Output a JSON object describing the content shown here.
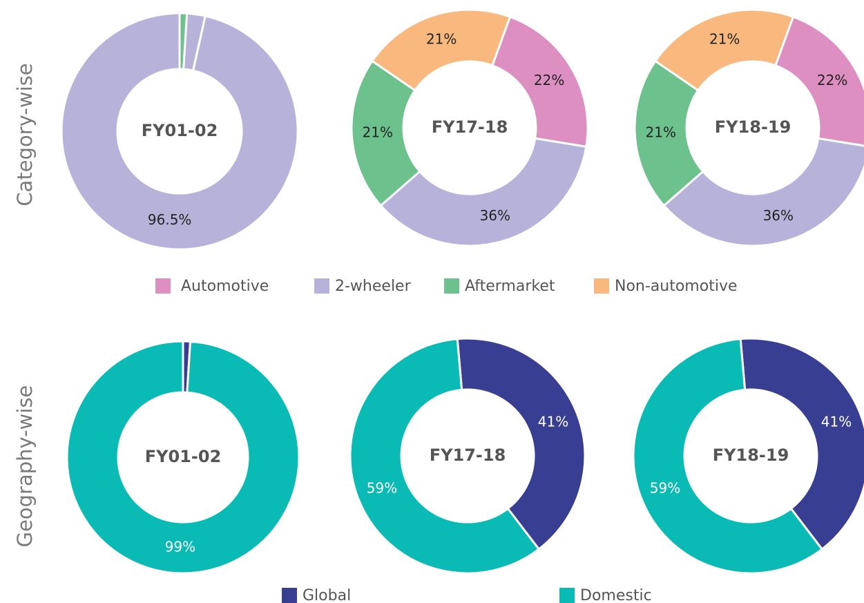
{
  "rows": [
    {
      "label": "Category-wise"
    },
    {
      "label": "Geography-wise"
    }
  ],
  "chart_data": [
    {
      "type": "donut",
      "title": "FY01-02",
      "categories": [
        "Aftermarket",
        "Automotive",
        "2-wheeler"
      ],
      "values": [
        1,
        2.5,
        96.5
      ],
      "value_labels": [
        "1%",
        "2.5%",
        "96.5%"
      ],
      "colors": [
        "#6cc18d",
        "#b7b2da",
        "#b7b2da"
      ]
    },
    {
      "type": "donut",
      "title": "FY17-18",
      "categories": [
        "Automotive",
        "2-wheeler",
        "Aftermarket",
        "Non-automotive"
      ],
      "values": [
        22,
        36,
        21,
        21
      ],
      "value_labels": [
        "22%",
        "36%",
        "21%",
        "21%"
      ],
      "colors": [
        "#dc8fc0",
        "#b7b2da",
        "#6cc18d",
        "#f9b97e"
      ]
    },
    {
      "type": "donut",
      "title": "FY18-19",
      "categories": [
        "Automotive",
        "2-wheeler",
        "Aftermarket",
        "Non-automotive"
      ],
      "values": [
        22,
        36,
        21,
        21
      ],
      "value_labels": [
        "22%",
        "36%",
        "21%",
        "21%"
      ],
      "colors": [
        "#dc8fc0",
        "#b7b2da",
        "#6cc18d",
        "#f9b97e"
      ]
    },
    {
      "type": "donut",
      "title": "FY01-02",
      "categories": [
        "Global",
        "Domestic"
      ],
      "values": [
        1,
        99
      ],
      "value_labels": [
        "1%",
        "99%"
      ],
      "colors": [
        "#383f92",
        "#0abab5"
      ]
    },
    {
      "type": "donut",
      "title": "FY17-18",
      "categories": [
        "Global",
        "Domestic"
      ],
      "values": [
        41,
        59
      ],
      "value_labels": [
        "41%",
        "59%"
      ],
      "colors": [
        "#383f92",
        "#0abab5"
      ]
    },
    {
      "type": "donut",
      "title": "FY18-19",
      "categories": [
        "Global",
        "Domestic"
      ],
      "values": [
        41,
        59
      ],
      "value_labels": [
        "41%",
        "59%"
      ],
      "colors": [
        "#383f92",
        "#0abab5"
      ]
    }
  ]
}
